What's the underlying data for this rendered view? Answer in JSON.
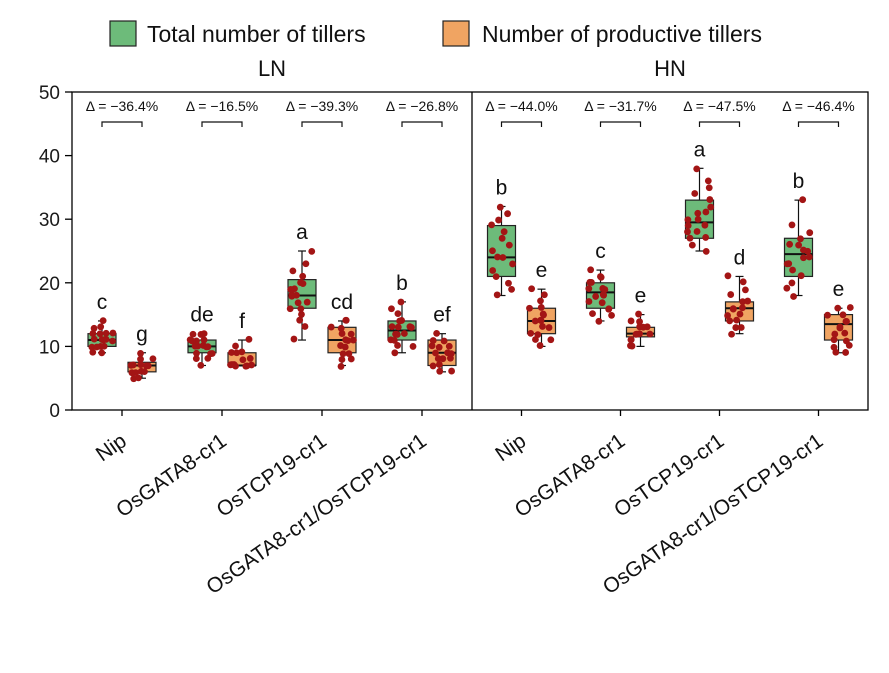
{
  "chart_data": {
    "type": "boxplot",
    "ylim": [
      0,
      50
    ],
    "yticks": [
      0,
      10,
      20,
      30,
      40,
      50
    ],
    "legend": {
      "placement": "top",
      "entries": [
        {
          "name": "Total number of tillers",
          "color": "#6dbb7a"
        },
        {
          "name": "Number of productive tillers",
          "color": "#f0a462"
        }
      ]
    },
    "point_color": "#a31515",
    "panels": [
      {
        "title": "LN",
        "groups": [
          {
            "label": "Nip",
            "delta": "Δ = −36.4%",
            "total": {
              "min": 9,
              "q1": 10,
              "median": 11,
              "q3": 12,
              "max": 14,
              "letter": "c",
              "points": [
                9,
                9,
                10,
                10,
                10,
                10,
                11,
                11,
                11,
                11,
                11,
                11,
                12,
                12,
                12,
                12,
                13,
                13,
                14
              ]
            },
            "productive": {
              "min": 5,
              "q1": 6,
              "median": 7,
              "q3": 7.5,
              "max": 9,
              "letter": "g",
              "points": [
                5,
                5,
                6,
                6,
                6,
                6,
                7,
                7,
                7,
                7,
                7,
                8,
                8,
                9
              ]
            }
          },
          {
            "label": "OsGATA8-cr1",
            "delta": "Δ = −16.5%",
            "total": {
              "min": 7,
              "q1": 9,
              "median": 10,
              "q3": 11,
              "max": 12,
              "letter": "de",
              "points": [
                7,
                8,
                8,
                9,
                9,
                9,
                10,
                10,
                10,
                10,
                10,
                11,
                11,
                11,
                11,
                12,
                12,
                12
              ]
            },
            "productive": {
              "min": 7,
              "q1": 7,
              "median": 7,
              "q3": 9,
              "max": 11,
              "letter": "f",
              "points": [
                7,
                7,
                7,
                7,
                7,
                7,
                7,
                8,
                8,
                9,
                9,
                9,
                10,
                11
              ]
            }
          },
          {
            "label": "OsTCP19-cr1",
            "delta": "Δ = −39.3%",
            "total": {
              "min": 11,
              "q1": 16,
              "median": 18,
              "q3": 20.5,
              "max": 25,
              "letter": "a",
              "points": [
                11,
                13,
                14,
                15,
                16,
                16,
                17,
                17,
                18,
                18,
                18,
                19,
                19,
                20,
                20,
                21,
                22,
                23,
                25
              ]
            },
            "productive": {
              "min": 7,
              "q1": 9,
              "median": 11,
              "q3": 13,
              "max": 14,
              "letter": "cd",
              "points": [
                7,
                8,
                8,
                9,
                9,
                10,
                10,
                11,
                11,
                11,
                12,
                12,
                13,
                13,
                14,
                14
              ]
            }
          },
          {
            "label": "OsGATA8-cr1/OsTCP19-cr1",
            "delta": "Δ = −26.8%",
            "total": {
              "min": 9,
              "q1": 11,
              "median": 12.5,
              "q3": 14,
              "max": 17,
              "letter": "b",
              "points": [
                9,
                10,
                10,
                11,
                11,
                12,
                12,
                12,
                13,
                13,
                13,
                13,
                14,
                14,
                15,
                16,
                17
              ]
            },
            "productive": {
              "min": 6,
              "q1": 7,
              "median": 9,
              "q3": 11,
              "max": 12,
              "letter": "ef",
              "points": [
                6,
                6,
                7,
                7,
                8,
                8,
                8,
                9,
                9,
                9,
                10,
                10,
                10,
                11,
                11,
                12
              ]
            }
          }
        ]
      },
      {
        "title": "HN",
        "groups": [
          {
            "label": "Nip",
            "delta": "Δ = −44.0%",
            "total": {
              "min": 18,
              "q1": 21,
              "median": 24,
              "q3": 29,
              "max": 32,
              "letter": "b",
              "points": [
                18,
                19,
                20,
                21,
                22,
                23,
                24,
                24,
                25,
                26,
                27,
                28,
                29,
                30,
                31,
                32
              ]
            },
            "productive": {
              "min": 10,
              "q1": 12,
              "median": 14,
              "q3": 16,
              "max": 19,
              "letter": "e",
              "points": [
                10,
                11,
                11,
                12,
                12,
                13,
                13,
                14,
                14,
                14,
                15,
                15,
                16,
                16,
                17,
                18,
                19
              ]
            }
          },
          {
            "label": "OsGATA8-cr1",
            "delta": "Δ = −31.7%",
            "total": {
              "min": 14,
              "q1": 16,
              "median": 18.5,
              "q3": 20,
              "max": 22,
              "letter": "c",
              "points": [
                14,
                15,
                15,
                16,
                16,
                17,
                17,
                18,
                18,
                18,
                19,
                19,
                19,
                20,
                20,
                21,
                21,
                22
              ]
            },
            "productive": {
              "min": 10,
              "q1": 11.5,
              "median": 12,
              "q3": 13,
              "max": 15,
              "letter": "e",
              "points": [
                10,
                10,
                11,
                11,
                12,
                12,
                12,
                12,
                13,
                13,
                13,
                14,
                14,
                15
              ]
            }
          },
          {
            "label": "OsTCP19-cr1",
            "delta": "Δ = −47.5%",
            "total": {
              "min": 25,
              "q1": 27,
              "median": 29.5,
              "q3": 33,
              "max": 38,
              "letter": "a",
              "points": [
                25,
                26,
                27,
                27,
                28,
                28,
                29,
                29,
                30,
                30,
                31,
                31,
                32,
                33,
                34,
                35,
                36,
                38
              ]
            },
            "productive": {
              "min": 12,
              "q1": 14,
              "median": 16,
              "q3": 17,
              "max": 21,
              "letter": "d",
              "points": [
                12,
                13,
                13,
                14,
                14,
                15,
                15,
                16,
                16,
                16,
                17,
                17,
                18,
                19,
                20,
                21
              ]
            }
          },
          {
            "label": "OsGATA8-cr1/OsTCP19-cr1",
            "delta": "Δ = −46.4%",
            "total": {
              "min": 18,
              "q1": 21,
              "median": 24.5,
              "q3": 27,
              "max": 33,
              "letter": "b",
              "points": [
                18,
                19,
                20,
                21,
                22,
                23,
                23,
                24,
                24,
                25,
                25,
                26,
                26,
                27,
                28,
                29,
                33
              ]
            },
            "productive": {
              "min": 9,
              "q1": 11,
              "median": 13.5,
              "q3": 15,
              "max": 16,
              "letter": "e",
              "points": [
                9,
                9,
                10,
                10,
                11,
                11,
                12,
                12,
                13,
                13,
                14,
                14,
                15,
                15,
                16,
                16
              ]
            }
          }
        ]
      }
    ]
  }
}
